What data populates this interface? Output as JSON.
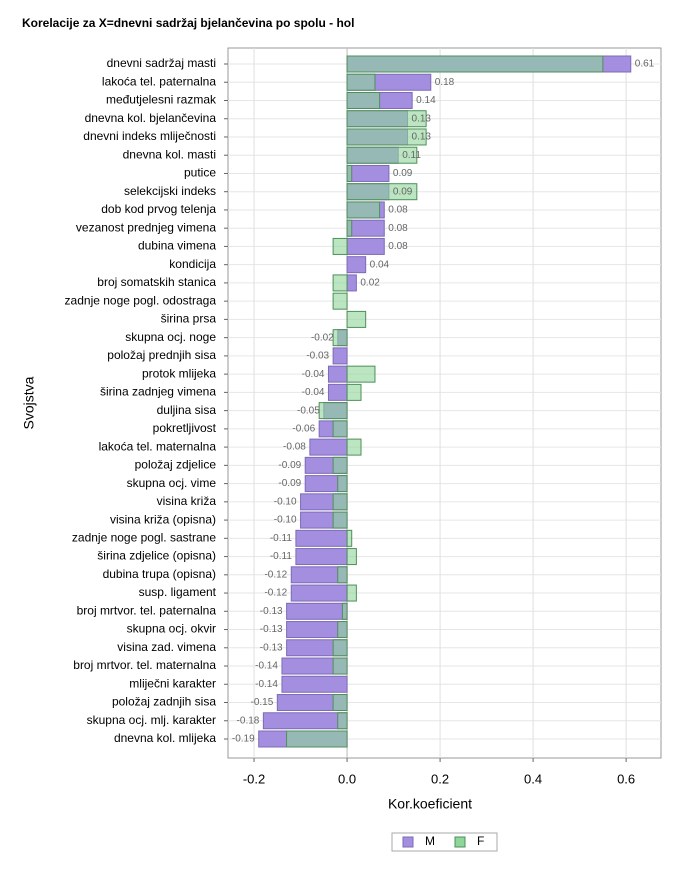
{
  "chart_data": {
    "type": "bar",
    "orientation": "horizontal",
    "title": "Korelacije za X=dnevni sadržaj bjelančevina po spolu - hol",
    "x_label": "Kor.koeficient",
    "y_label": "Svojstva",
    "categories": [
      "dnevni sadržaj masti",
      "lakoća tel. paternalna",
      "međutjelesni razmak",
      "dnevna kol. bjelančevina",
      "dnevni indeks mliječnosti",
      "dnevna kol. masti",
      "putice",
      "selekcijski indeks",
      "dob kod prvog telenja",
      "vezanost prednjeg vimena",
      "dubina vimena",
      "kondicija",
      "broj somatskih stanica",
      "zadnje noge pogl. odostraga",
      "širina prsa",
      "skupna ocj. noge",
      "položaj prednjih sisa",
      "protok mlijeka",
      "širina zadnjeg vimena",
      "duljina sisa",
      "pokretljivost",
      "lakoća tel. maternalna",
      "položaj zdjelice",
      "skupna ocj. vime",
      "visina križa",
      "visina križa (opisna)",
      "zadnje noge pogl. sastrane",
      "širina zdjelice (opisna)",
      "dubina trupa (opisna)",
      "susp. ligament",
      "broj mrtvor. tel. paternalna",
      "skupna ocj. okvir",
      "visina zad. vimena",
      "broj mrtvor. tel. maternalna",
      "mliječni karakter",
      "položaj zadnjih sisa",
      "skupna ocj. mlj. karakter",
      "dnevna kol. mlijeka"
    ],
    "series": [
      {
        "name": "M",
        "color": "#a48ee0",
        "values": [
          0.61,
          0.18,
          0.14,
          0.13,
          0.13,
          0.11,
          0.09,
          0.09,
          0.08,
          0.08,
          0.08,
          0.04,
          0.02,
          null,
          null,
          -0.02,
          -0.03,
          -0.04,
          -0.04,
          -0.05,
          -0.06,
          -0.08,
          -0.09,
          -0.09,
          -0.1,
          -0.1,
          -0.11,
          -0.11,
          -0.12,
          -0.12,
          -0.13,
          -0.13,
          -0.13,
          -0.14,
          -0.14,
          -0.15,
          -0.18,
          -0.19
        ],
        "value_labels": [
          "0.61",
          "0.18",
          "0.14",
          "0.13",
          "0.13",
          "0.11",
          "0.09",
          "0.09",
          "0.08",
          "0.08",
          "0.08",
          "0.04",
          "0.02",
          null,
          null,
          "-0.02",
          "-0.03",
          "-0.04",
          "-0.04",
          "-0.05",
          "-0.06",
          "-0.08",
          "-0.09",
          "-0.09",
          "-0.10",
          "-0.10",
          "-0.11",
          "-0.11",
          "-0.12",
          "-0.12",
          "-0.13",
          "-0.13",
          "-0.13",
          "-0.14",
          "-0.14",
          "-0.15",
          "-0.18",
          "-0.19"
        ]
      },
      {
        "name": "F",
        "color": "#8fd69a",
        "values": [
          0.55,
          0.06,
          0.07,
          0.17,
          0.17,
          0.15,
          0.01,
          0.15,
          0.07,
          0.01,
          -0.03,
          0,
          -0.03,
          -0.03,
          0.04,
          -0.03,
          0,
          0.06,
          0.03,
          -0.06,
          -0.03,
          0.03,
          -0.03,
          -0.02,
          -0.03,
          -0.03,
          0.01,
          0.02,
          -0.02,
          0.02,
          -0.01,
          -0.02,
          -0.03,
          -0.03,
          0,
          -0.03,
          -0.02,
          -0.13
        ]
      }
    ],
    "xlim": [
      -0.256,
      0.675
    ],
    "xticks": [
      -0.2,
      {
        "value": 0,
        "label": "0.0"
      },
      0.2,
      0.4,
      0.6
    ],
    "grid": true
  }
}
